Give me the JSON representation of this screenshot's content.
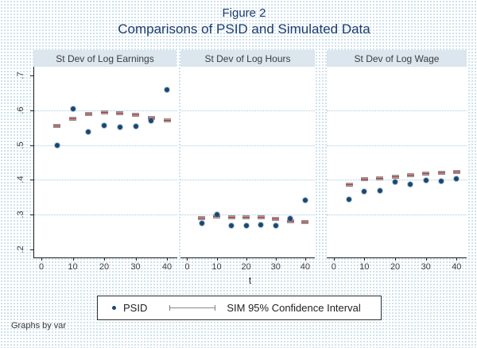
{
  "figure": {
    "title_line1": "Figure 2",
    "title_line2": "Comparisons of PSID and Simulated Data",
    "xlabel": "t",
    "note": "Graphs by var",
    "legend": {
      "psid_label": "PSID",
      "sim_label": "SIM  95% Confidence Interval"
    }
  },
  "colors": {
    "psid_navy": "#1a476f",
    "sim_maroon": "#90353b",
    "cap_gray": "#8a8a8a",
    "title_navy": "#1b3c6e",
    "panel_header_bg": "#dbe6ef",
    "gridline_blue": "#a9c9dc",
    "background_dot_blue": "#bfd9e6"
  },
  "chart_data": {
    "type": "scatter",
    "layout": "three-panel small multiples (Stata 'graph by var'), shared axes",
    "title": "Figure 2 — Comparisons of PSID and Simulated Data",
    "xlabel": "t",
    "ylabel": "",
    "x": [
      5,
      10,
      15,
      20,
      25,
      30,
      35,
      40
    ],
    "x_ticks": [
      0,
      10,
      20,
      30,
      40
    ],
    "xlim": [
      -2.3,
      43.3
    ],
    "y_ticks": [
      0.2,
      0.3,
      0.4,
      0.5,
      0.6,
      0.7
    ],
    "ylim": [
      0.175,
      0.725
    ],
    "grid": "dotted horizontal gridlines at 0.3, 0.4, 0.5, 0.6",
    "gridline_values": [
      0.3,
      0.4,
      0.5,
      0.6
    ],
    "legend_position": "bottom center",
    "legend_entries": [
      "PSID",
      "SIM  95% Confidence Interval"
    ],
    "panels": [
      {
        "title": "St Dev of Log Earnings",
        "series": [
          {
            "name": "PSID",
            "marker": "dot",
            "color": "#1a476f",
            "values": [
              0.5,
              0.605,
              0.538,
              0.556,
              0.551,
              0.555,
              0.571,
              0.66
            ]
          },
          {
            "name": "SIM 95% Confidence Interval",
            "marker": "capped-interval",
            "color": "#90353b",
            "values": [
              0.556,
              0.576,
              0.59,
              0.595,
              0.591,
              0.586,
              0.579,
              0.571
            ]
          }
        ]
      },
      {
        "title": "St Dev of Log Hours",
        "series": [
          {
            "name": "PSID",
            "marker": "dot",
            "color": "#1a476f",
            "values": [
              0.275,
              0.301,
              0.269,
              0.269,
              0.271,
              0.268,
              0.289,
              0.342
            ]
          },
          {
            "name": "SIM 95% Confidence Interval",
            "marker": "capped-interval",
            "color": "#90353b",
            "values": [
              0.291,
              0.295,
              0.293,
              0.293,
              0.292,
              0.287,
              0.282,
              0.279
            ]
          }
        ]
      },
      {
        "title": "St Dev of Log Wage",
        "series": [
          {
            "name": "PSID",
            "marker": "dot",
            "color": "#1a476f",
            "values": [
              0.344,
              0.366,
              0.37,
              0.395,
              0.388,
              0.399,
              0.396,
              0.404
            ]
          },
          {
            "name": "SIM 95% Confidence Interval",
            "marker": "capped-interval",
            "color": "#90353b",
            "values": [
              0.387,
              0.401,
              0.404,
              0.41,
              0.413,
              0.419,
              0.42,
              0.422
            ]
          }
        ]
      }
    ]
  }
}
